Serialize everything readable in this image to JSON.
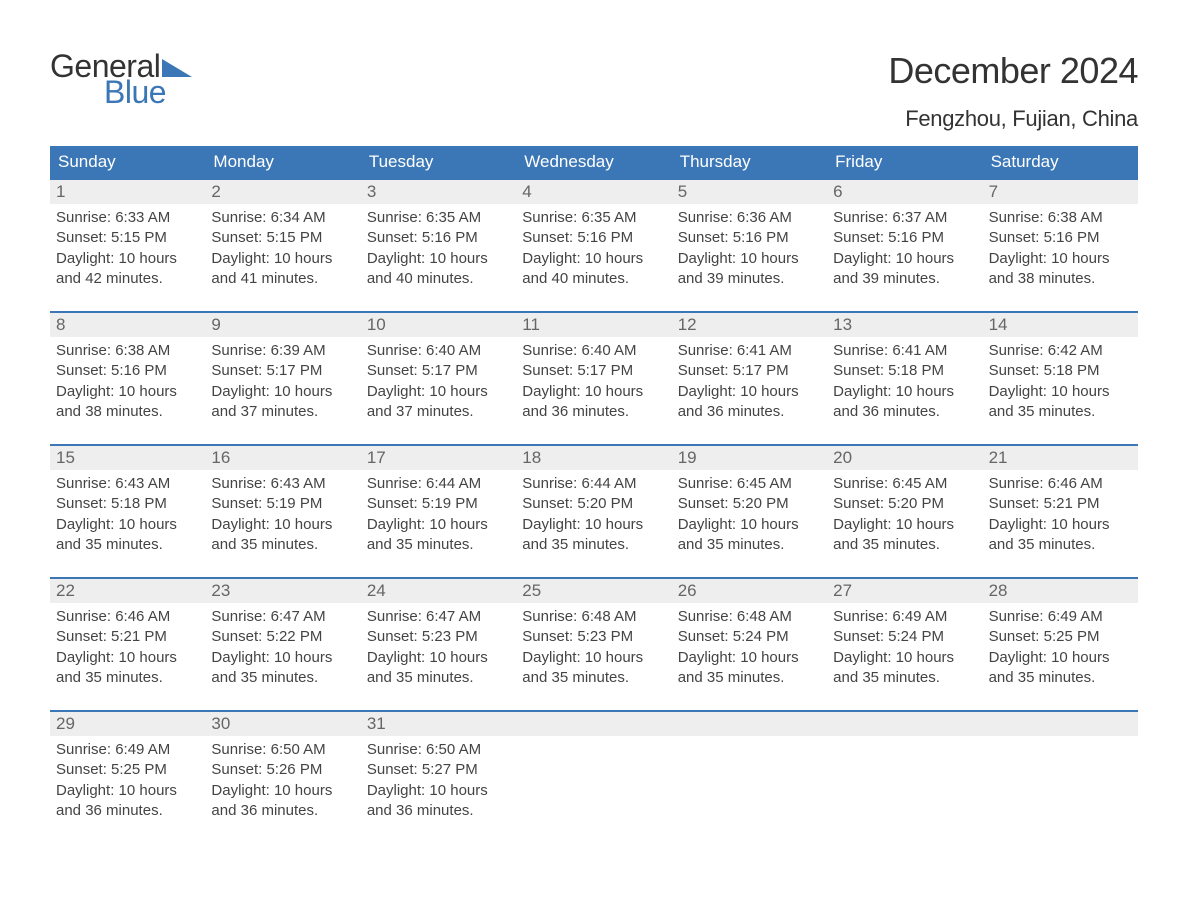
{
  "logo": {
    "word1": "General",
    "word2": "Blue",
    "text_color": "#333333",
    "accent_color": "#3b77b6"
  },
  "title": "December 2024",
  "location": "Fengzhou, Fujian, China",
  "colors": {
    "header_bg": "#3b77b6",
    "header_text": "#ffffff",
    "daynum_bg": "#eeeeee",
    "daynum_text": "#666666",
    "body_text": "#444444",
    "page_bg": "#ffffff",
    "rule": "#3b77b6"
  },
  "weekdays": [
    "Sunday",
    "Monday",
    "Tuesday",
    "Wednesday",
    "Thursday",
    "Friday",
    "Saturday"
  ],
  "weeks": [
    [
      {
        "n": "1",
        "sunrise": "6:33 AM",
        "sunset": "5:15 PM",
        "daylight": "10 hours and 42 minutes."
      },
      {
        "n": "2",
        "sunrise": "6:34 AM",
        "sunset": "5:15 PM",
        "daylight": "10 hours and 41 minutes."
      },
      {
        "n": "3",
        "sunrise": "6:35 AM",
        "sunset": "5:16 PM",
        "daylight": "10 hours and 40 minutes."
      },
      {
        "n": "4",
        "sunrise": "6:35 AM",
        "sunset": "5:16 PM",
        "daylight": "10 hours and 40 minutes."
      },
      {
        "n": "5",
        "sunrise": "6:36 AM",
        "sunset": "5:16 PM",
        "daylight": "10 hours and 39 minutes."
      },
      {
        "n": "6",
        "sunrise": "6:37 AM",
        "sunset": "5:16 PM",
        "daylight": "10 hours and 39 minutes."
      },
      {
        "n": "7",
        "sunrise": "6:38 AM",
        "sunset": "5:16 PM",
        "daylight": "10 hours and 38 minutes."
      }
    ],
    [
      {
        "n": "8",
        "sunrise": "6:38 AM",
        "sunset": "5:16 PM",
        "daylight": "10 hours and 38 minutes."
      },
      {
        "n": "9",
        "sunrise": "6:39 AM",
        "sunset": "5:17 PM",
        "daylight": "10 hours and 37 minutes."
      },
      {
        "n": "10",
        "sunrise": "6:40 AM",
        "sunset": "5:17 PM",
        "daylight": "10 hours and 37 minutes."
      },
      {
        "n": "11",
        "sunrise": "6:40 AM",
        "sunset": "5:17 PM",
        "daylight": "10 hours and 36 minutes."
      },
      {
        "n": "12",
        "sunrise": "6:41 AM",
        "sunset": "5:17 PM",
        "daylight": "10 hours and 36 minutes."
      },
      {
        "n": "13",
        "sunrise": "6:41 AM",
        "sunset": "5:18 PM",
        "daylight": "10 hours and 36 minutes."
      },
      {
        "n": "14",
        "sunrise": "6:42 AM",
        "sunset": "5:18 PM",
        "daylight": "10 hours and 35 minutes."
      }
    ],
    [
      {
        "n": "15",
        "sunrise": "6:43 AM",
        "sunset": "5:18 PM",
        "daylight": "10 hours and 35 minutes."
      },
      {
        "n": "16",
        "sunrise": "6:43 AM",
        "sunset": "5:19 PM",
        "daylight": "10 hours and 35 minutes."
      },
      {
        "n": "17",
        "sunrise": "6:44 AM",
        "sunset": "5:19 PM",
        "daylight": "10 hours and 35 minutes."
      },
      {
        "n": "18",
        "sunrise": "6:44 AM",
        "sunset": "5:20 PM",
        "daylight": "10 hours and 35 minutes."
      },
      {
        "n": "19",
        "sunrise": "6:45 AM",
        "sunset": "5:20 PM",
        "daylight": "10 hours and 35 minutes."
      },
      {
        "n": "20",
        "sunrise": "6:45 AM",
        "sunset": "5:20 PM",
        "daylight": "10 hours and 35 minutes."
      },
      {
        "n": "21",
        "sunrise": "6:46 AM",
        "sunset": "5:21 PM",
        "daylight": "10 hours and 35 minutes."
      }
    ],
    [
      {
        "n": "22",
        "sunrise": "6:46 AM",
        "sunset": "5:21 PM",
        "daylight": "10 hours and 35 minutes."
      },
      {
        "n": "23",
        "sunrise": "6:47 AM",
        "sunset": "5:22 PM",
        "daylight": "10 hours and 35 minutes."
      },
      {
        "n": "24",
        "sunrise": "6:47 AM",
        "sunset": "5:23 PM",
        "daylight": "10 hours and 35 minutes."
      },
      {
        "n": "25",
        "sunrise": "6:48 AM",
        "sunset": "5:23 PM",
        "daylight": "10 hours and 35 minutes."
      },
      {
        "n": "26",
        "sunrise": "6:48 AM",
        "sunset": "5:24 PM",
        "daylight": "10 hours and 35 minutes."
      },
      {
        "n": "27",
        "sunrise": "6:49 AM",
        "sunset": "5:24 PM",
        "daylight": "10 hours and 35 minutes."
      },
      {
        "n": "28",
        "sunrise": "6:49 AM",
        "sunset": "5:25 PM",
        "daylight": "10 hours and 35 minutes."
      }
    ],
    [
      {
        "n": "29",
        "sunrise": "6:49 AM",
        "sunset": "5:25 PM",
        "daylight": "10 hours and 36 minutes."
      },
      {
        "n": "30",
        "sunrise": "6:50 AM",
        "sunset": "5:26 PM",
        "daylight": "10 hours and 36 minutes."
      },
      {
        "n": "31",
        "sunrise": "6:50 AM",
        "sunset": "5:27 PM",
        "daylight": "10 hours and 36 minutes."
      },
      null,
      null,
      null,
      null
    ]
  ],
  "labels": {
    "sunrise": "Sunrise: ",
    "sunset": "Sunset: ",
    "daylight": "Daylight: "
  }
}
